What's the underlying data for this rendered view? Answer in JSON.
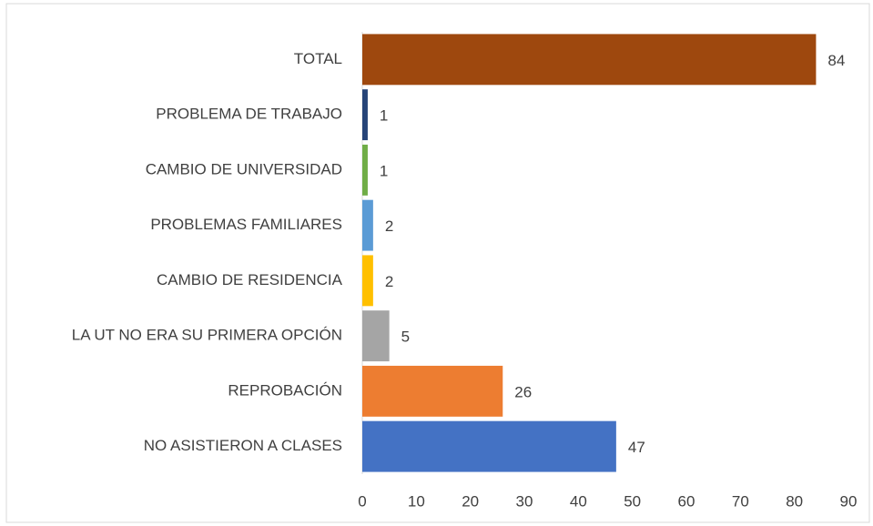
{
  "chart_data": {
    "type": "bar",
    "orientation": "horizontal",
    "categories": [
      "TOTAL",
      "PROBLEMA DE TRABAJO",
      "CAMBIO DE UNIVERSIDAD",
      "PROBLEMAS FAMILIARES",
      "CAMBIO DE RESIDENCIA",
      "LA UT NO ERA SU PRIMERA OPCIÓN",
      "REPROBACIÓN",
      "NO ASISTIERON A CLASES"
    ],
    "values": [
      84,
      1,
      1,
      2,
      2,
      5,
      26,
      47
    ],
    "colors": [
      "#9e480e",
      "#264478",
      "#70ad47",
      "#5b9bd5",
      "#ffc000",
      "#a5a5a5",
      "#ed7d31",
      "#4472c4"
    ],
    "xlim": [
      0,
      90
    ],
    "xticks": [
      0,
      10,
      20,
      30,
      40,
      50,
      60,
      70,
      80,
      90
    ],
    "grid": false
  }
}
